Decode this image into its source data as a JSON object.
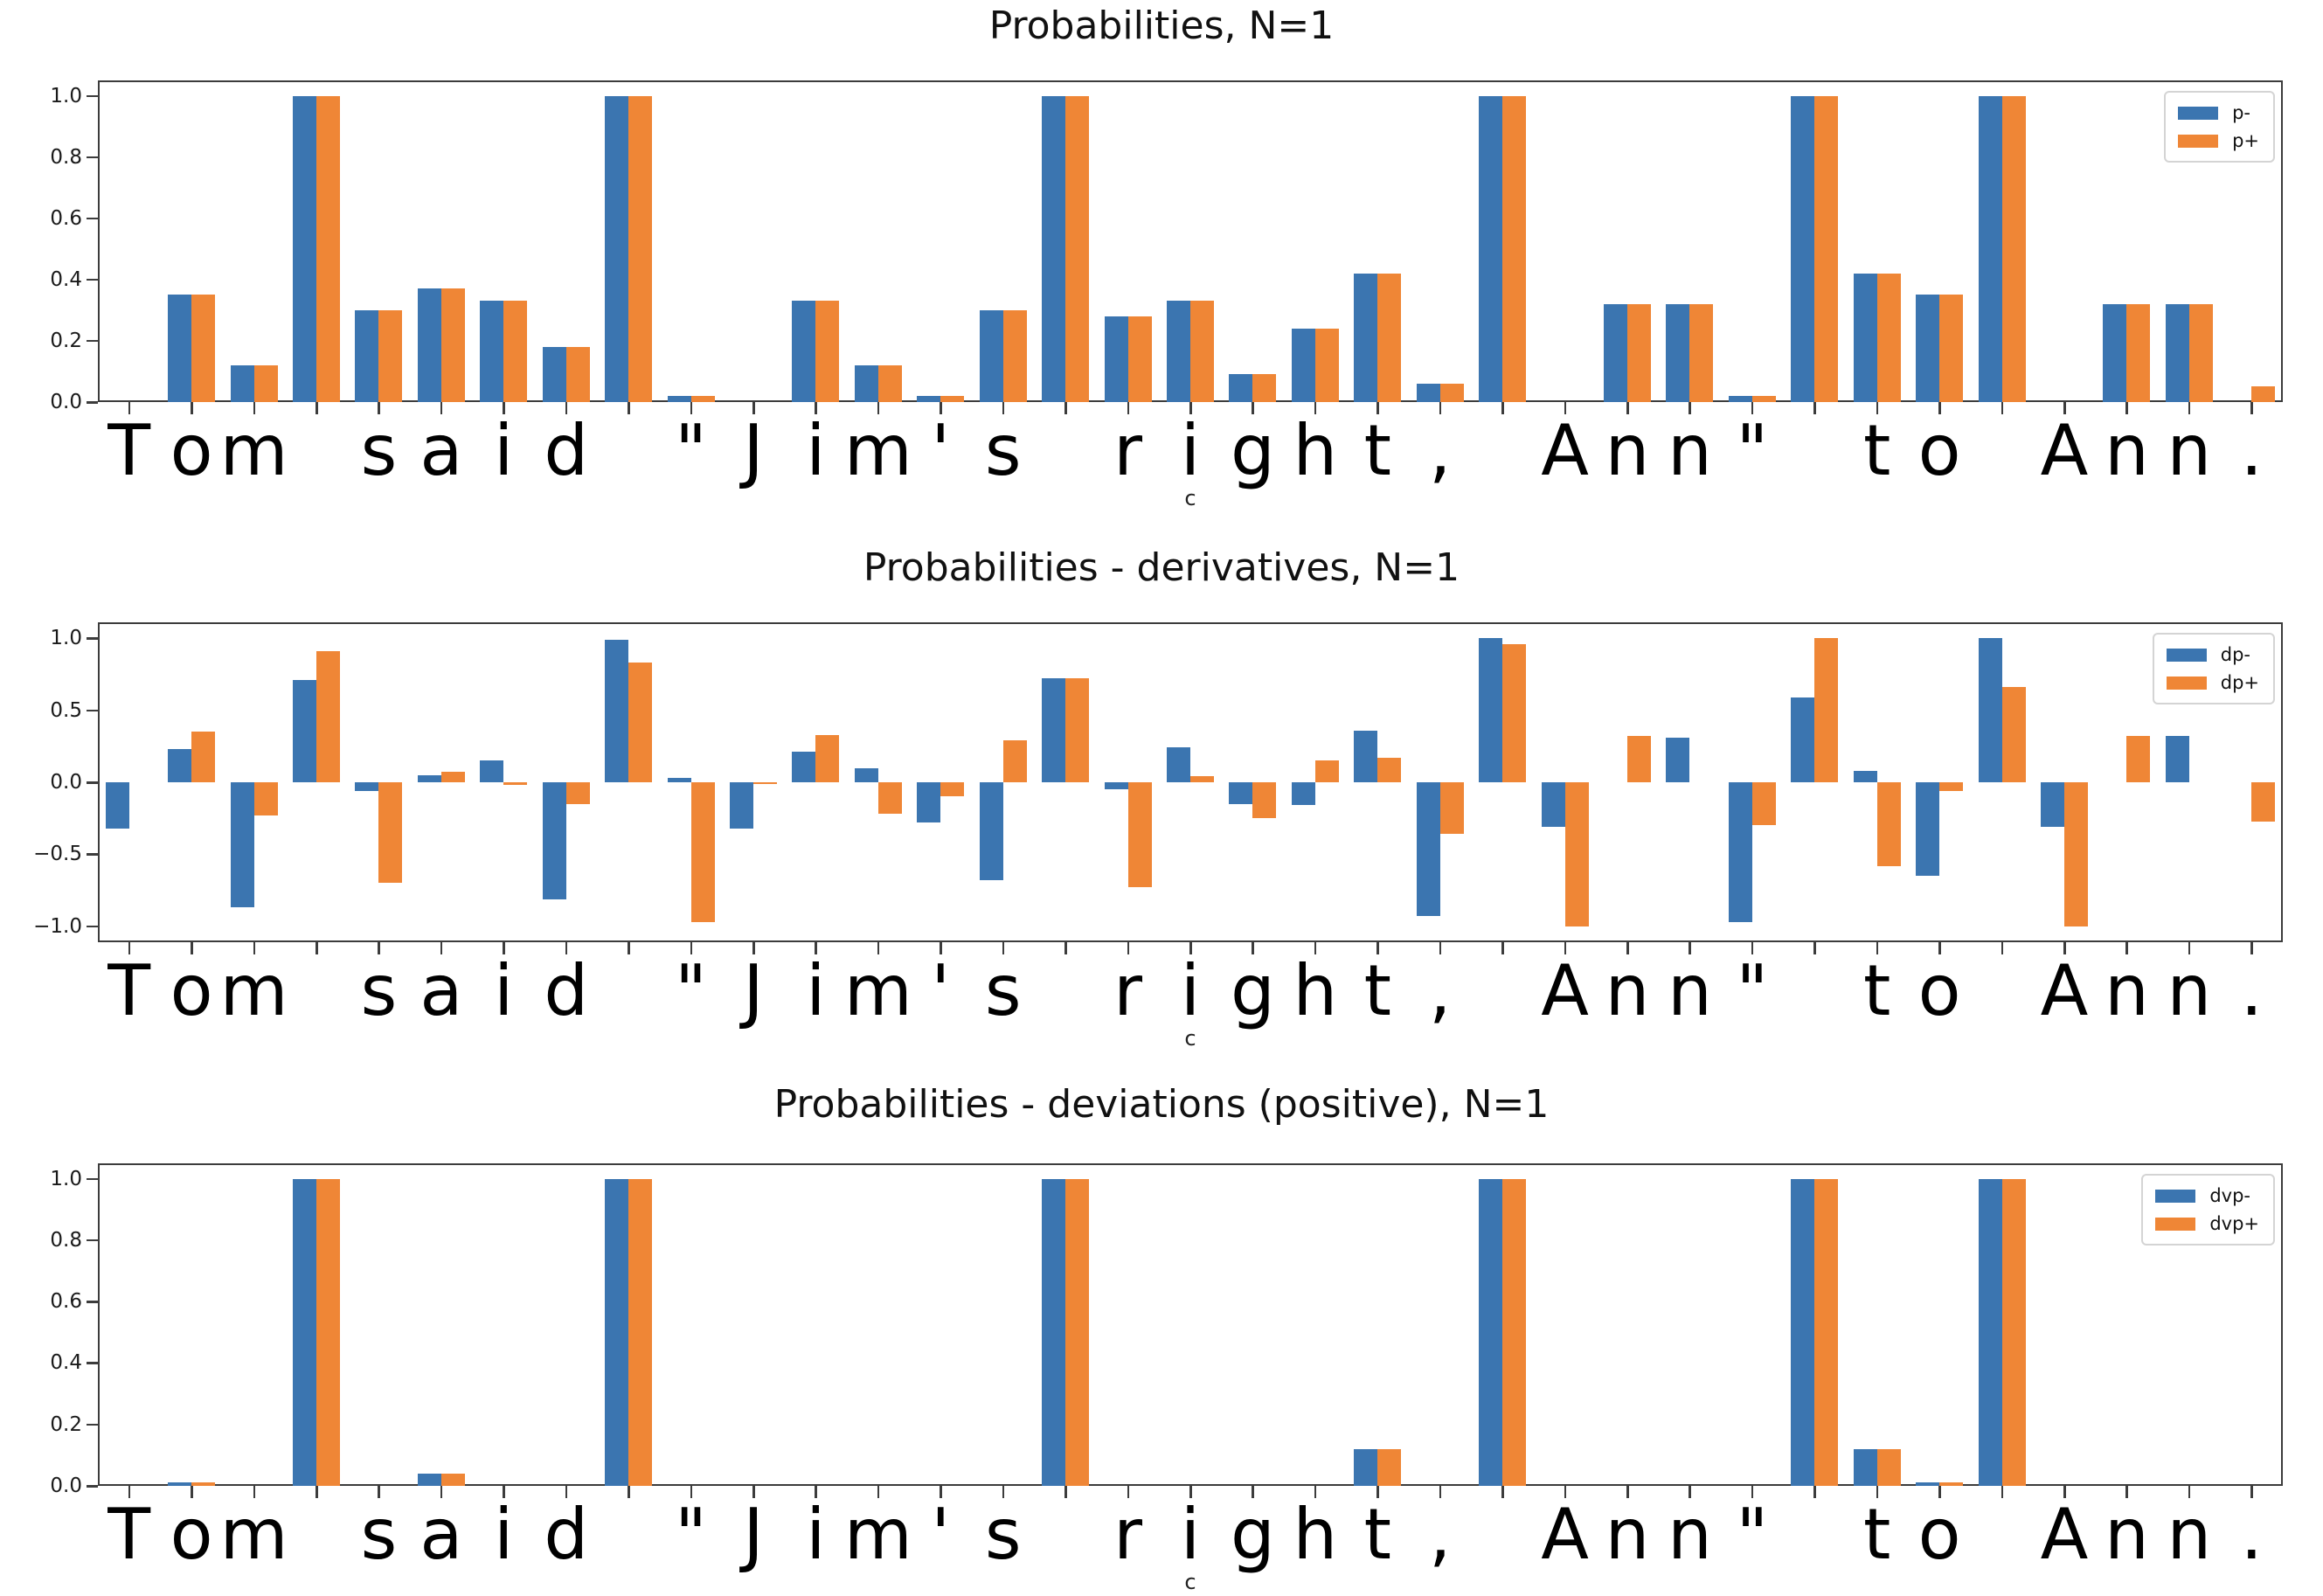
{
  "figure": {
    "background": "#ffffff",
    "accent_blue": "#3b75b0",
    "accent_orange": "#ef8636",
    "spine_color": "#3c3c3c"
  },
  "chart_data": [
    {
      "type": "bar",
      "title": "Probabilities, N=1",
      "xlabel": "c",
      "legend_position": "upper right",
      "grid": false,
      "ylim": [
        0,
        1.05
      ],
      "yticks": [
        0.0,
        0.2,
        0.4,
        0.6,
        0.8,
        1.0
      ],
      "categories": [
        "T",
        "o",
        "m",
        " ",
        "s",
        "a",
        "i",
        "d",
        " ",
        "\"",
        "J",
        "i",
        "m",
        "'",
        "s",
        " ",
        "r",
        "i",
        "g",
        "h",
        "t",
        ",",
        " ",
        "A",
        "n",
        "n",
        "\"",
        " ",
        "t",
        "o",
        " ",
        "A",
        "n",
        "n",
        "."
      ],
      "series": [
        {
          "name": "p-",
          "color": "#3b75b0",
          "values": [
            0,
            0.35,
            0.12,
            1.0,
            0.3,
            0.37,
            0.33,
            0.18,
            1.0,
            0.02,
            0,
            0.33,
            0.12,
            0.02,
            0.3,
            1.0,
            0.28,
            0.33,
            0.09,
            0.24,
            0.42,
            0.06,
            1.0,
            0,
            0.32,
            0.32,
            0.02,
            1.0,
            0.42,
            0.35,
            1.0,
            0,
            0.32,
            0.32,
            0
          ]
        },
        {
          "name": "p+",
          "color": "#ef8636",
          "values": [
            0,
            0.35,
            0.12,
            1.0,
            0.3,
            0.37,
            0.33,
            0.18,
            1.0,
            0.02,
            0,
            0.33,
            0.12,
            0.02,
            0.3,
            1.0,
            0.28,
            0.33,
            0.09,
            0.24,
            0.42,
            0.06,
            1.0,
            0,
            0.32,
            0.32,
            0.02,
            1.0,
            0.42,
            0.35,
            1.0,
            0,
            0.32,
            0.32,
            0.05
          ]
        }
      ]
    },
    {
      "type": "bar",
      "title": "Probabilities - derivatives, N=1",
      "xlabel": "c",
      "legend_position": "upper right",
      "grid": false,
      "ylim": [
        -1.11,
        1.11
      ],
      "yticks": [
        1.0,
        0.5,
        0.0,
        -0.5,
        -1.0
      ],
      "categories": [
        "T",
        "o",
        "m",
        " ",
        "s",
        "a",
        "i",
        "d",
        " ",
        "\"",
        "J",
        "i",
        "m",
        "'",
        "s",
        " ",
        "r",
        "i",
        "g",
        "h",
        "t",
        ",",
        " ",
        "A",
        "n",
        "n",
        "\"",
        " ",
        "t",
        "o",
        " ",
        "A",
        "n",
        "n",
        "."
      ],
      "series": [
        {
          "name": "dp-",
          "color": "#3b75b0",
          "values": [
            -0.32,
            0.23,
            -0.87,
            0.71,
            -0.06,
            0.05,
            0.15,
            -0.81,
            0.99,
            0.03,
            -0.32,
            0.21,
            0.1,
            -0.28,
            -0.68,
            0.72,
            -0.05,
            0.24,
            -0.15,
            -0.16,
            0.36,
            -0.93,
            1.0,
            -0.31,
            0,
            0.31,
            -0.97,
            0.59,
            0.08,
            -0.65,
            1.0,
            -0.31,
            0,
            0.32,
            0
          ]
        },
        {
          "name": "dp+",
          "color": "#ef8636",
          "values": [
            0,
            0.35,
            -0.23,
            0.91,
            -0.7,
            0.07,
            -0.02,
            -0.15,
            0.83,
            -0.97,
            -0.01,
            0.33,
            -0.22,
            -0.1,
            0.29,
            0.72,
            -0.73,
            0.04,
            -0.25,
            0.15,
            0.17,
            -0.36,
            0.96,
            -1.0,
            0.32,
            0,
            -0.3,
            1.0,
            -0.58,
            -0.06,
            0.66,
            -1.0,
            0.32,
            0,
            -0.27
          ]
        }
      ]
    },
    {
      "type": "bar",
      "title": "Probabilities - deviations (positive), N=1",
      "xlabel": "c",
      "legend_position": "upper right",
      "grid": false,
      "ylim": [
        0,
        1.05
      ],
      "yticks": [
        0.0,
        0.2,
        0.4,
        0.6,
        0.8,
        1.0
      ],
      "categories": [
        "T",
        "o",
        "m",
        " ",
        "s",
        "a",
        "i",
        "d",
        " ",
        "\"",
        "J",
        "i",
        "m",
        "'",
        "s",
        " ",
        "r",
        "i",
        "g",
        "h",
        "t",
        ",",
        " ",
        "A",
        "n",
        "n",
        "\"",
        " ",
        "t",
        "o",
        " ",
        "A",
        "n",
        "n",
        "."
      ],
      "series": [
        {
          "name": "dvp-",
          "color": "#3b75b0",
          "values": [
            0,
            0.01,
            0,
            1.0,
            0,
            0.04,
            0,
            0,
            1.0,
            0,
            0,
            0,
            0,
            0,
            0,
            1.0,
            0,
            0,
            0,
            0,
            0.12,
            0,
            1.0,
            0,
            0,
            0,
            0,
            1.0,
            0.12,
            0.01,
            1.0,
            0,
            0,
            0,
            0
          ]
        },
        {
          "name": "dvp+",
          "color": "#ef8636",
          "values": [
            0,
            0.01,
            0,
            1.0,
            0,
            0.04,
            0,
            0,
            1.0,
            0,
            0,
            0,
            0,
            0,
            0,
            1.0,
            0,
            0,
            0,
            0,
            0.12,
            0,
            1.0,
            0,
            0,
            0,
            0,
            1.0,
            0.12,
            0.01,
            1.0,
            0,
            0,
            0,
            0
          ]
        }
      ]
    }
  ]
}
